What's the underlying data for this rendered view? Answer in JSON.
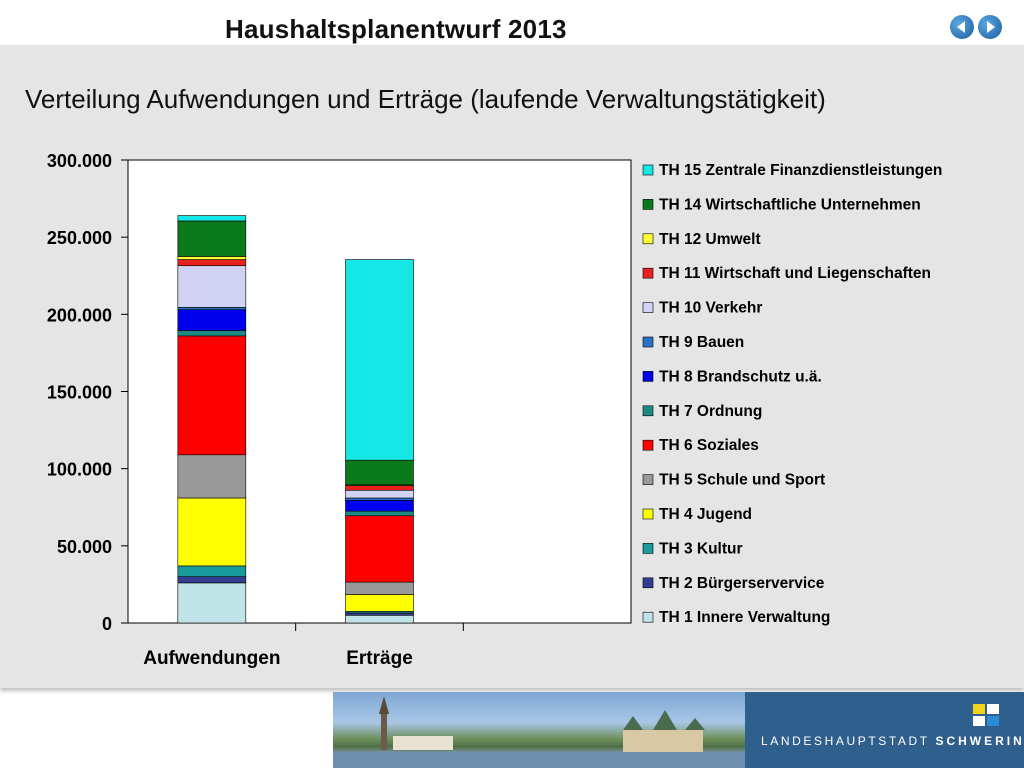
{
  "header": {
    "title": "Haushaltsplanentwurf 2013"
  },
  "nav": {
    "prev_icon": "arrow-left-icon",
    "next_icon": "arrow-right-icon",
    "color": "#1b5f9e"
  },
  "subtitle": "Verteilung Aufwendungen und Erträge (laufende Verwaltungstätigkeit)",
  "footer": {
    "banner_text_prefix": "LANDESHAUPTSTADT",
    "banner_text_city": "SCHWERIN"
  },
  "chart_data": {
    "type": "bar",
    "stacked": true,
    "categories": [
      "Aufwendungen",
      "Erträge"
    ],
    "ylim": [
      0,
      300000
    ],
    "yticks": [
      0,
      50000,
      100000,
      150000,
      200000,
      250000,
      300000
    ],
    "ytick_labels": [
      "0",
      "50.000",
      "100.000",
      "150.000",
      "200.000",
      "250.000",
      "300.000"
    ],
    "legend_position": "right",
    "series": [
      {
        "name": "TH 1 Innere Verwaltung",
        "color": "#bfe3e6",
        "values": [
          26000,
          5000
        ]
      },
      {
        "name": "TH 2 Bürgerserver­vice",
        "color": "#333c8f",
        "values": [
          4000,
          1500
        ]
      },
      {
        "name": "TH 3 Kultur",
        "color": "#1a9b9b",
        "values": [
          7000,
          1000
        ]
      },
      {
        "name": "TH 4 Jugend",
        "color": "#ffff00",
        "values": [
          44000,
          11000
        ]
      },
      {
        "name": "TH 5 Schule und Sport",
        "color": "#999999",
        "values": [
          28000,
          8000
        ]
      },
      {
        "name": "TH 6 Soziales",
        "color": "#ff0000",
        "values": [
          77000,
          43000
        ]
      },
      {
        "name": "TH 7 Ordnung",
        "color": "#1c8c82",
        "values": [
          3500,
          3000
        ]
      },
      {
        "name": "TH 8 Brandschutz u.ä.",
        "color": "#0000ee",
        "values": [
          13500,
          7000
        ]
      },
      {
        "name": "TH 9 Bauen",
        "color": "#2a72c6",
        "values": [
          1500,
          1500
        ]
      },
      {
        "name": "TH 10 Verkehr",
        "color": "#d2d2f4",
        "values": [
          27000,
          5000
        ]
      },
      {
        "name": "TH 11 Wirtschaft und Liegenschaften",
        "color": "#e8211f",
        "values": [
          4000,
          3000
        ]
      },
      {
        "name": "TH 12 Umwelt",
        "color": "#ffff33",
        "values": [
          2000,
          500
        ]
      },
      {
        "name": "TH 14 Wirtschaftliche Unternehmen",
        "color": "#0a7a1a",
        "values": [
          23000,
          16000
        ]
      },
      {
        "name": "TH 15 Zentrale Finanzdienstleistungen",
        "color": "#15e6e6",
        "values": [
          3500,
          130000
        ]
      }
    ]
  }
}
